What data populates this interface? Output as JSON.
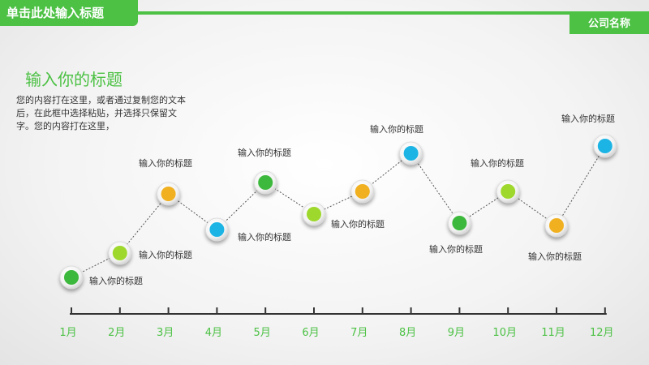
{
  "header": {
    "title": "单击此处输入标题",
    "company": "公司名称"
  },
  "intro": {
    "heading": "输入你的标题",
    "description": "您的内容打在这里，或者通过复制您的文本后，在此框中选择粘贴，并选择只保留文字。您的内容打在这里，"
  },
  "chart_data": {
    "type": "line",
    "categories": [
      "1月",
      "2月",
      "3月",
      "4月",
      "5月",
      "6月",
      "7月",
      "8月",
      "9月",
      "10月",
      "11月",
      "12月"
    ],
    "points": [
      {
        "month": "1月",
        "color": "#3cb83c",
        "label": "输入你的标题"
      },
      {
        "month": "2月",
        "color": "#9ed82c",
        "label": "输入你的标题"
      },
      {
        "month": "3月",
        "color": "#f0b020",
        "label": "输入你的标题"
      },
      {
        "month": "4月",
        "color": "#1cb4e4",
        "label": ""
      },
      {
        "month": "5月",
        "color": "#3cb83c",
        "label": "输入你的标题"
      },
      {
        "month": "6月",
        "color": "#9ed82c",
        "label": "输入你的标题"
      },
      {
        "month": "7月",
        "color": "#f0b020",
        "label": "输入你的标题"
      },
      {
        "month": "8月",
        "color": "#1cb4e4",
        "label": "输入你的标题"
      },
      {
        "month": "9月",
        "color": "#3cb83c",
        "label": "输入你的标题"
      },
      {
        "month": "10月",
        "color": "#9ed82c",
        "label": "输入你的标题"
      },
      {
        "month": "11月",
        "color": "#f0b020",
        "label": "输入你的标题"
      },
      {
        "month": "12月",
        "color": "#1cb4e4",
        "label": "输入你的标题"
      }
    ],
    "colors": {
      "accent": "#4cc144",
      "axis": "#333333"
    }
  }
}
